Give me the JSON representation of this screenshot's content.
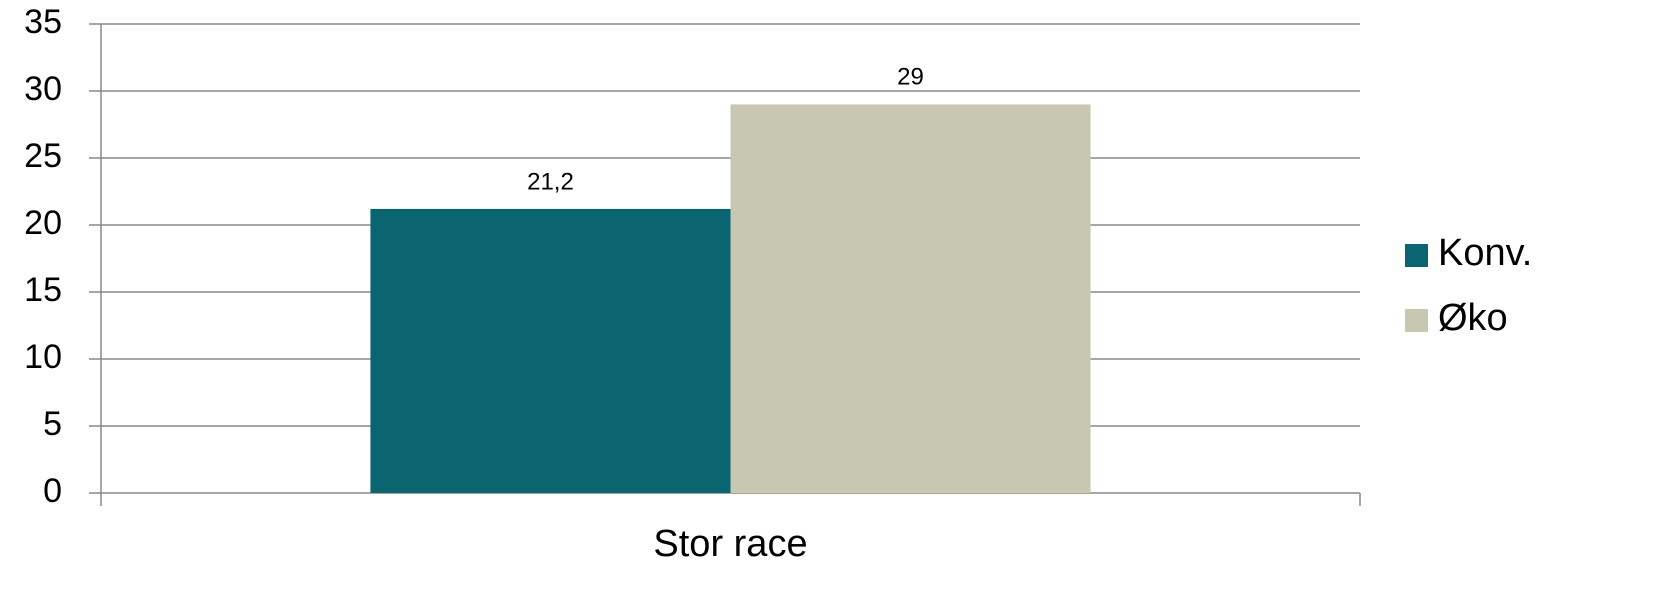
{
  "chart_data": {
    "type": "bar",
    "categories": [
      "Stor race"
    ],
    "series": [
      {
        "name": "Konv.",
        "color": "#0b6570",
        "values": [
          21.2
        ],
        "value_labels": [
          "21,2"
        ]
      },
      {
        "name": "Øko",
        "color": "#c8c8b2",
        "values": [
          29
        ]
      }
    ],
    "ylim": [
      0,
      35
    ],
    "yticks": [
      0,
      5,
      10,
      15,
      20,
      25,
      30,
      35
    ],
    "grid": true,
    "legend": "right"
  }
}
